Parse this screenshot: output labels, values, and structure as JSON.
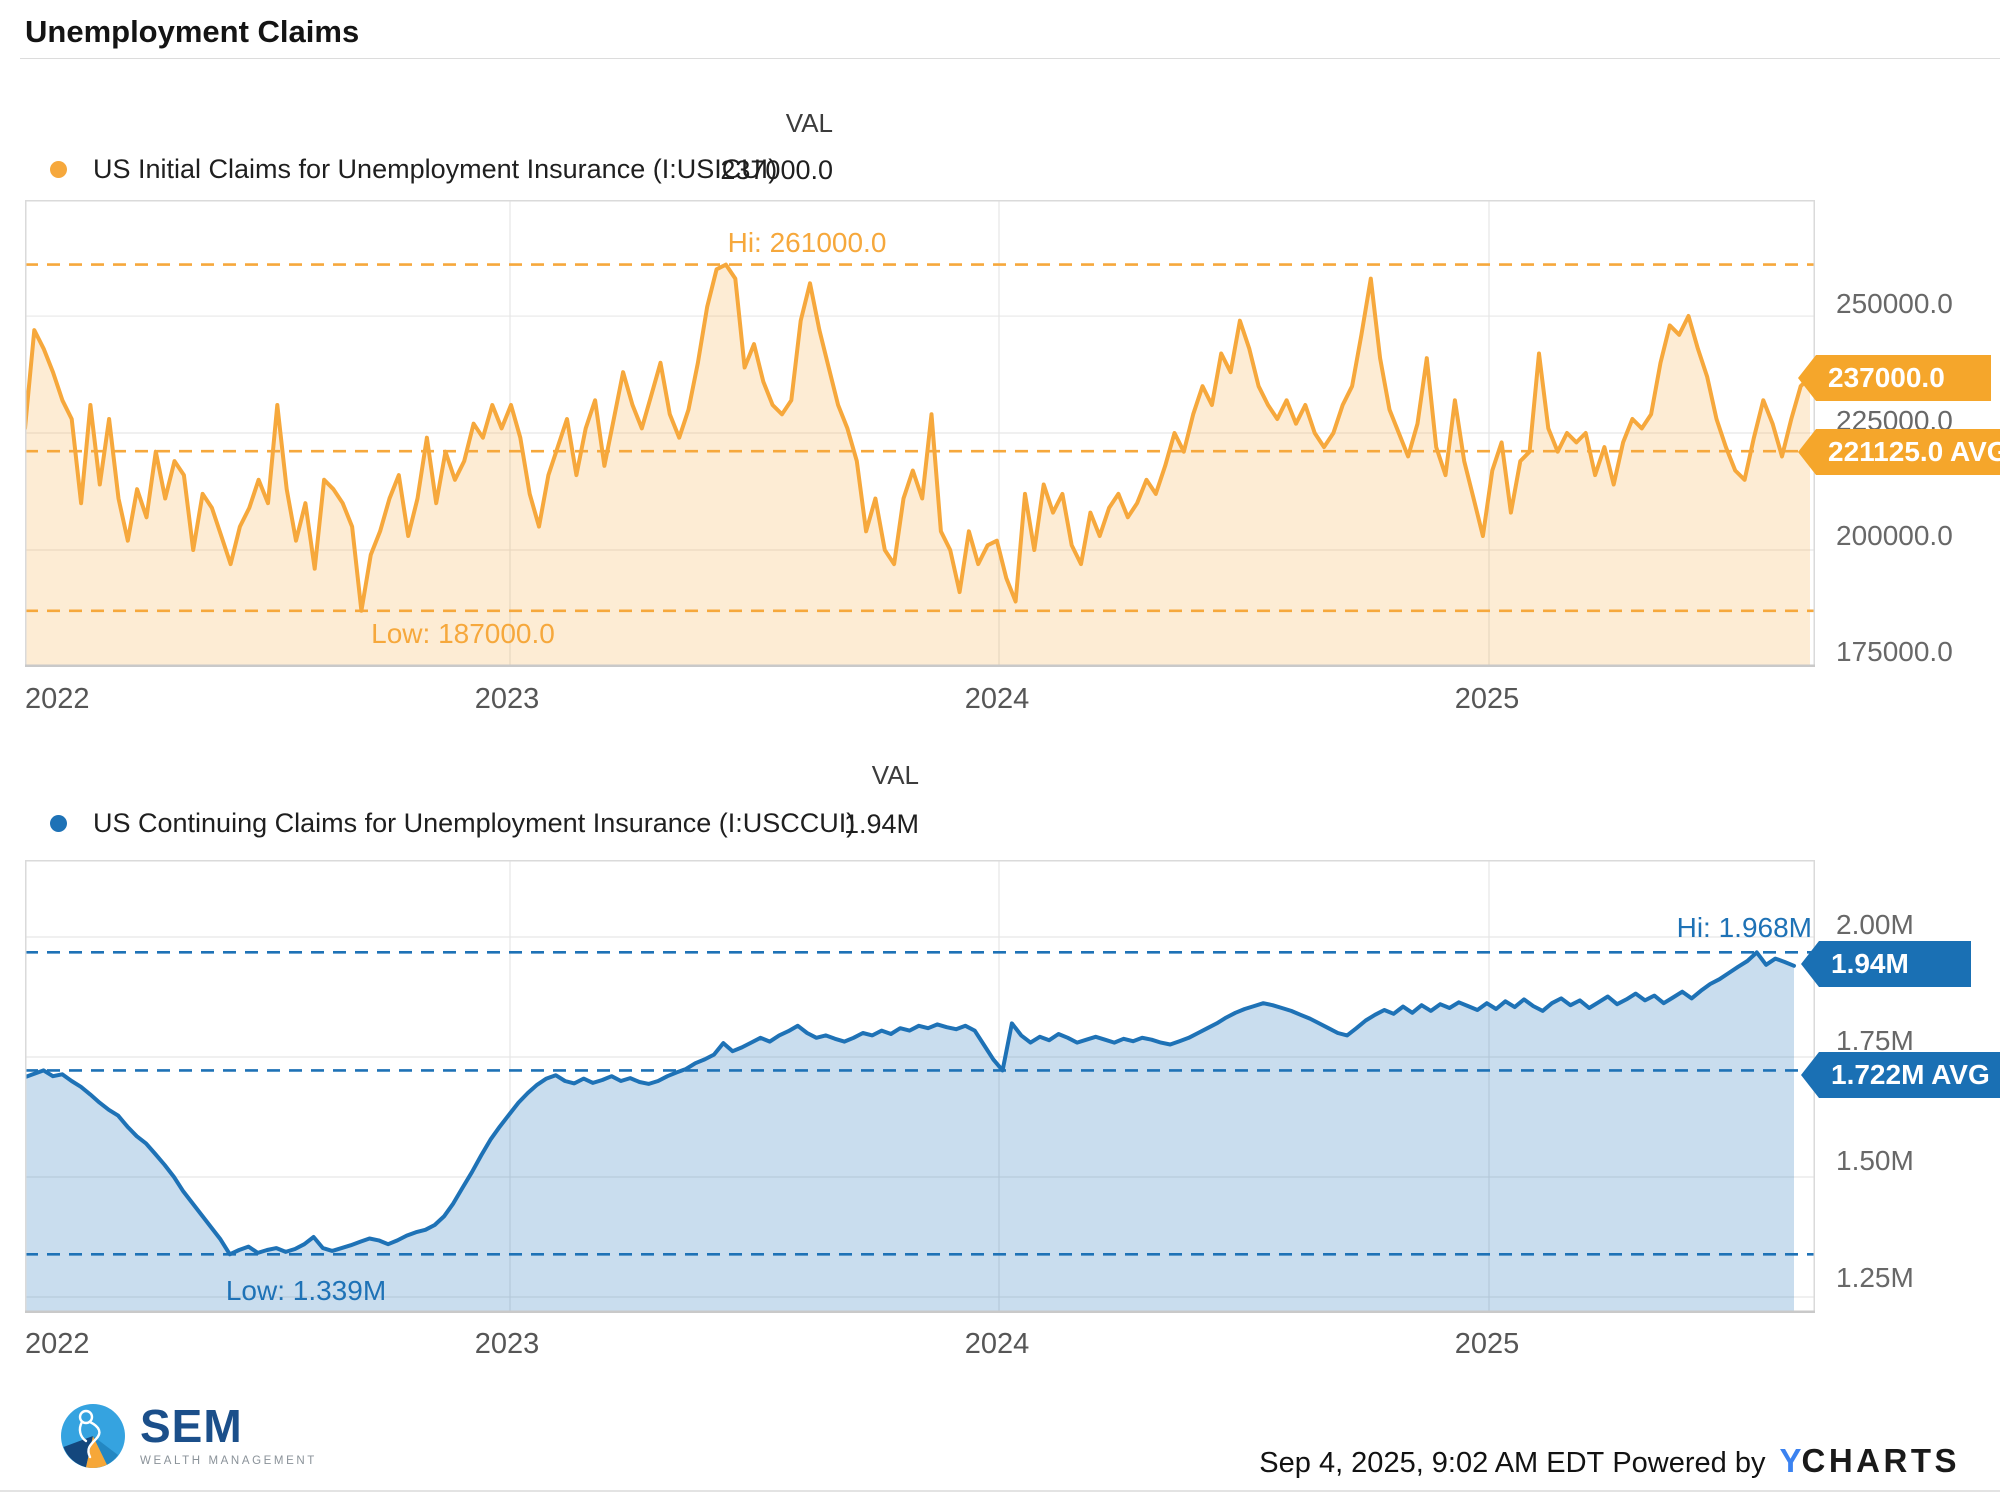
{
  "title": "Unemployment Claims",
  "panels": [
    {
      "legend_label": "US Initial Claims for Unemployment Insurance (I:USICUI)",
      "val_header": "VAL",
      "val": "237000.0",
      "hi_label": "Hi: 261000.0",
      "low_label": "Low: 187000.0",
      "badge_value": "237000.0",
      "badge_avg": "221125.0 AVG",
      "y_ticks": [
        "250000.0",
        "225000.0",
        "200000.0",
        "175000.0"
      ],
      "x_ticks": [
        "2022",
        "2023",
        "2024",
        "2025"
      ],
      "color": "#F6A83C",
      "badge_color": "#F5A62B",
      "fill_opacity": 0.22
    },
    {
      "legend_label": "US Continuing Claims for Unemployment Insurance (I:USCCUI)",
      "val_header": "VAL",
      "val": "1.94M",
      "hi_label": "Hi: 1.968M",
      "low_label": "Low: 1.339M",
      "badge_value": "1.94M",
      "badge_avg": "1.722M AVG",
      "y_ticks": [
        "2.00M",
        "1.75M",
        "1.50M",
        "1.25M"
      ],
      "x_ticks": [
        "2022",
        "2023",
        "2024",
        "2025"
      ],
      "color": "#1E72B6",
      "badge_color": "#1A70B4",
      "fill_opacity": 0.24
    }
  ],
  "footer": {
    "logo_name": "SEM",
    "logo_sub": "WEALTH MANAGEMENT",
    "timestamp": "Sep 4, 2025, 9:02 AM EDT",
    "powered_by": "Powered by",
    "brand_y": "Y",
    "brand_rest": "CHARTS",
    "sem_navy": "#1b4f8a",
    "sem_light_blue": "#35a3e0",
    "sem_orange": "#f6a738",
    "ycharts_blue": "#3b82f0"
  },
  "chart_data": [
    {
      "type": "area",
      "title": "US Initial Claims for Unemployment Insurance (I:USICUI)",
      "x_start": "2022-01",
      "x_end": "2025-09",
      "freq": "weekly",
      "values_unit": "thousands of claims",
      "hi": 261,
      "low": 187,
      "avg": 221.125,
      "latest": 237,
      "ylim": [
        175,
        274.8
      ],
      "y_gridlines": [
        250,
        225,
        200,
        175
      ],
      "x_year_ticks": [
        "2022",
        "2023",
        "2024",
        "2025"
      ],
      "grid": true,
      "legend_position": "top-left",
      "values": [
        226,
        247,
        243,
        238,
        232,
        228,
        210,
        231,
        214,
        228,
        211,
        202,
        213,
        207,
        221,
        211,
        219,
        216,
        200,
        212,
        209,
        203,
        197,
        205,
        209,
        215,
        210,
        231,
        213,
        202,
        210,
        196,
        215,
        213,
        210,
        205,
        187,
        199,
        204,
        211,
        216,
        203,
        211,
        224,
        210,
        221,
        215,
        219,
        227,
        224,
        231,
        226,
        231,
        224,
        212,
        205,
        216,
        222,
        228,
        216,
        226,
        232,
        218,
        228,
        238,
        231,
        226,
        233,
        240,
        229,
        224,
        230,
        240,
        252,
        260,
        261,
        258,
        239,
        244,
        236,
        231,
        229,
        232,
        249,
        257,
        247,
        239,
        231,
        226,
        219,
        204,
        211,
        200,
        197,
        211,
        217,
        211,
        229,
        204,
        200,
        191,
        204,
        197,
        201,
        202,
        194,
        189,
        212,
        200,
        214,
        208,
        212,
        201,
        197,
        208,
        203,
        209,
        212,
        207,
        210,
        215,
        212,
        218,
        225,
        221,
        229,
        235,
        231,
        242,
        238,
        249,
        243,
        235,
        231,
        228,
        232,
        227,
        231,
        225,
        222,
        225,
        231,
        235,
        246,
        258,
        241,
        230,
        225,
        220,
        227,
        241,
        222,
        216,
        232,
        219,
        211,
        203,
        217,
        223,
        208,
        219,
        221,
        242,
        226,
        221,
        225,
        223,
        225,
        216,
        222,
        214,
        223,
        228,
        226,
        229,
        240,
        248,
        246,
        250,
        243,
        237,
        228,
        222,
        217,
        215,
        224,
        232,
        227,
        220,
        228,
        235,
        237
      ]
    },
    {
      "type": "area",
      "title": "US Continuing Claims for Unemployment Insurance (I:USCCUI)",
      "x_start": "2022-01",
      "x_end": "2025-08",
      "freq": "weekly",
      "values_unit": "millions of claims",
      "hi": 1.968,
      "low": 1.339,
      "avg": 1.722,
      "latest": 1.94,
      "ylim": [
        1.2167,
        2.1604
      ],
      "y_gridlines": [
        2.0,
        1.75,
        1.5,
        1.25
      ],
      "x_year_ticks": [
        "2022",
        "2023",
        "2024",
        "2025"
      ],
      "grid": true,
      "legend_position": "top-left",
      "values": [
        1.708,
        1.715,
        1.722,
        1.71,
        1.714,
        1.7,
        1.688,
        1.672,
        1.655,
        1.64,
        1.628,
        1.605,
        1.585,
        1.57,
        1.548,
        1.525,
        1.5,
        1.47,
        1.445,
        1.42,
        1.395,
        1.37,
        1.339,
        1.348,
        1.355,
        1.342,
        1.348,
        1.352,
        1.344,
        1.35,
        1.36,
        1.375,
        1.352,
        1.346,
        1.352,
        1.358,
        1.365,
        1.372,
        1.368,
        1.36,
        1.368,
        1.378,
        1.385,
        1.39,
        1.4,
        1.418,
        1.445,
        1.478,
        1.51,
        1.545,
        1.578,
        1.605,
        1.63,
        1.655,
        1.675,
        1.692,
        1.705,
        1.712,
        1.7,
        1.695,
        1.705,
        1.696,
        1.702,
        1.71,
        1.7,
        1.706,
        1.698,
        1.694,
        1.7,
        1.71,
        1.718,
        1.725,
        1.737,
        1.745,
        1.755,
        1.779,
        1.762,
        1.77,
        1.78,
        1.79,
        1.782,
        1.795,
        1.804,
        1.815,
        1.8,
        1.79,
        1.795,
        1.788,
        1.782,
        1.79,
        1.8,
        1.795,
        1.805,
        1.798,
        1.81,
        1.805,
        1.815,
        1.81,
        1.818,
        1.812,
        1.808,
        1.815,
        1.805,
        1.775,
        1.745,
        1.722,
        1.82,
        1.795,
        1.78,
        1.792,
        1.785,
        1.798,
        1.79,
        1.78,
        1.786,
        1.792,
        1.786,
        1.78,
        1.788,
        1.783,
        1.79,
        1.786,
        1.78,
        1.776,
        1.783,
        1.79,
        1.8,
        1.81,
        1.82,
        1.832,
        1.842,
        1.85,
        1.856,
        1.862,
        1.858,
        1.852,
        1.846,
        1.838,
        1.83,
        1.82,
        1.81,
        1.8,
        1.795,
        1.81,
        1.826,
        1.838,
        1.848,
        1.84,
        1.855,
        1.842,
        1.858,
        1.846,
        1.86,
        1.852,
        1.864,
        1.856,
        1.848,
        1.862,
        1.85,
        1.866,
        1.854,
        1.87,
        1.856,
        1.846,
        1.862,
        1.872,
        1.858,
        1.868,
        1.852,
        1.864,
        1.876,
        1.86,
        1.87,
        1.882,
        1.868,
        1.878,
        1.862,
        1.874,
        1.886,
        1.872,
        1.888,
        1.902,
        1.912,
        1.925,
        1.938,
        1.95,
        1.968,
        1.942,
        1.955,
        1.948,
        1.94
      ]
    }
  ]
}
